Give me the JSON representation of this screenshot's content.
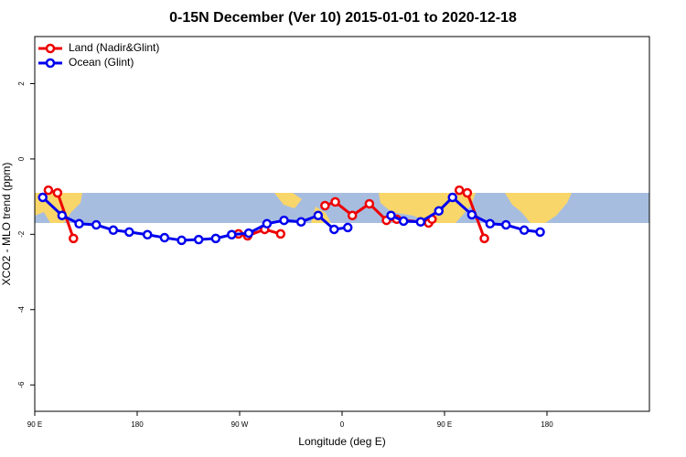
{
  "chart_data": {
    "type": "line",
    "title": "0-15N December (Ver 10)   2015-01-01 to 2020-12-18",
    "x_label": "Longitude (deg E)",
    "y_label": "XCO2 - MLO trend (ppm)",
    "xlim": [
      90,
      630
    ],
    "xticks": [
      {
        "value": 90,
        "label": "90 E"
      },
      {
        "value": 180,
        "label": "180"
      },
      {
        "value": 270,
        "label": "90 W"
      },
      {
        "value": 360,
        "label": "0"
      },
      {
        "value": 450,
        "label": "90 E"
      },
      {
        "value": 540,
        "label": "180"
      }
    ],
    "ylim": [
      -6.7,
      3.25
    ],
    "yticks": [
      2,
      0,
      -2,
      -4,
      -6
    ],
    "legend": "top-left",
    "series": [
      {
        "name": "Land (Nadir&Glint)",
        "color": "#ee0000",
        "x": [
          102,
          110,
          124,
          null,
          269,
          277,
          292,
          306,
          null,
          345,
          354,
          369,
          384,
          399,
          408,
          436,
          439,
          null,
          463,
          470,
          485
        ],
        "values": [
          -0.83,
          -0.9,
          -2.11,
          null,
          -1.99,
          -2.04,
          -1.87,
          -1.99,
          null,
          -1.24,
          -1.14,
          -1.5,
          -1.19,
          -1.63,
          -1.6,
          -1.7,
          -1.6,
          null,
          -0.83,
          -0.9,
          -2.11
        ]
      },
      {
        "name": "Ocean (Glint)",
        "color": "#0000ee",
        "x": [
          97,
          114,
          129,
          144,
          159,
          173,
          189,
          204,
          219,
          234,
          249,
          263,
          278,
          294,
          309,
          324,
          339,
          353,
          365,
          null,
          403,
          414,
          429,
          445,
          457,
          474,
          490,
          504,
          520,
          534
        ],
        "values": [
          -1.02,
          -1.5,
          -1.72,
          -1.75,
          -1.89,
          -1.94,
          -2.01,
          -2.09,
          -2.16,
          -2.14,
          -2.11,
          -2.01,
          -1.97,
          -1.72,
          -1.63,
          -1.67,
          -1.5,
          -1.87,
          -1.82,
          null,
          -1.5,
          -1.65,
          -1.67,
          -1.38,
          -1.02,
          -1.48,
          -1.72,
          -1.75,
          -1.89,
          -1.94
        ]
      }
    ]
  }
}
